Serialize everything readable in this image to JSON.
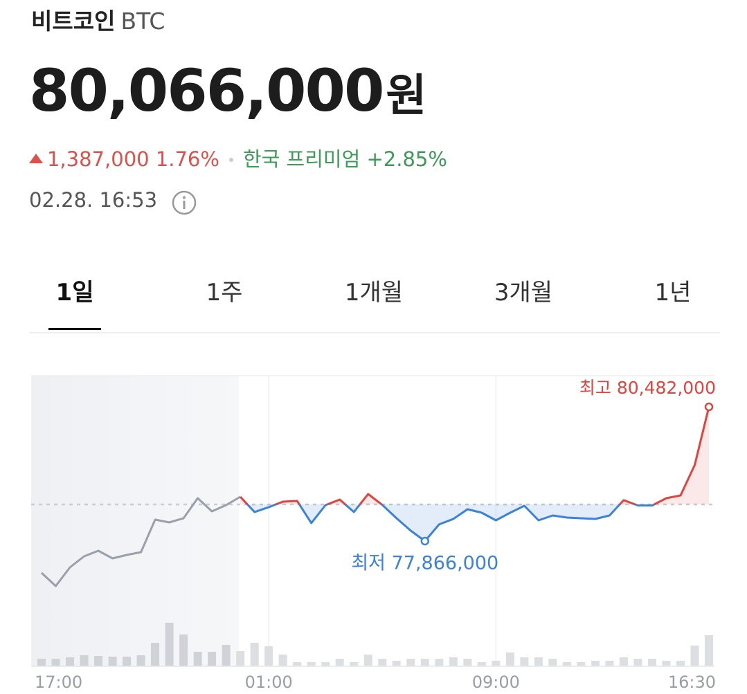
{
  "header": {
    "name": "비트코인",
    "symbol": "BTC",
    "price": "80,066,000",
    "unit": "원",
    "change": "1,387,000",
    "change_pct": "1.76%",
    "premium_label": "한국 프리미엄",
    "premium": "+2.85%",
    "timestamp": "02.28. 16:53"
  },
  "tabs": {
    "items": [
      "1일",
      "1주",
      "1개월",
      "3개월",
      "1년"
    ],
    "selected": 0
  },
  "chart_data": {
    "type": "line",
    "categories": [
      "17:00",
      null,
      null,
      null,
      null,
      null,
      null,
      null,
      null,
      null,
      null,
      null,
      null,
      null,
      null,
      null,
      "01:00",
      null,
      null,
      null,
      null,
      null,
      null,
      null,
      null,
      null,
      null,
      null,
      null,
      null,
      null,
      null,
      "09:00",
      null,
      null,
      null,
      null,
      null,
      null,
      null,
      null,
      null,
      null,
      null,
      null,
      null,
      null,
      "16:30"
    ],
    "series": [
      {
        "color": "#9aa0aa",
        "values": [
          77246000,
          76989000,
          77353000,
          77569000,
          77677000,
          77529000,
          77596000,
          77650000,
          78284000,
          78230000,
          78311000,
          78702000,
          78446000,
          78567000,
          78729000,
          null,
          null,
          null,
          null,
          null,
          null,
          null,
          null,
          null,
          null,
          null,
          null,
          null,
          null,
          null,
          null,
          null,
          null,
          null,
          null,
          null,
          null,
          null,
          null,
          null,
          null,
          null,
          null,
          null,
          null,
          null,
          null,
          null
        ]
      },
      {
        "up_color": "#e0443e",
        "down_color": "#3b82d9",
        "values": [
          null,
          null,
          null,
          null,
          null,
          null,
          null,
          null,
          null,
          null,
          null,
          null,
          null,
          null,
          78729000,
          78432000,
          78527000,
          78635000,
          78648000,
          78217000,
          78567000,
          78675000,
          78432000,
          78783000,
          78570000,
          78311000,
          78068000,
          77866000,
          78190000,
          78297000,
          78486000,
          78419000,
          78270000,
          78419000,
          78554000,
          78270000,
          78365000,
          78324000,
          78311000,
          78297000,
          78365000,
          78662000,
          78560000,
          78560000,
          78702000,
          78756000,
          79349000,
          80482000
        ]
      }
    ],
    "reference_value": 78580000,
    "volume": {
      "past_color": "#cfd2d6",
      "color": "#dcdee1",
      "values": [
        10,
        10,
        12,
        15,
        14,
        13,
        13,
        15,
        33,
        62,
        45,
        20,
        20,
        30,
        21,
        33,
        28,
        16,
        5,
        5,
        5,
        10,
        5,
        16,
        10,
        7,
        10,
        10,
        10,
        12,
        10,
        5,
        7,
        19,
        12,
        12,
        10,
        5,
        5,
        7,
        7,
        12,
        10,
        10,
        7,
        7,
        29,
        44
      ]
    },
    "annotations": [
      {
        "text": "최고 80,482,000",
        "index": 47,
        "color": "#e0443e"
      },
      {
        "text": "최저 77,866,000",
        "index": 27,
        "color": "#3b82d9"
      }
    ]
  }
}
